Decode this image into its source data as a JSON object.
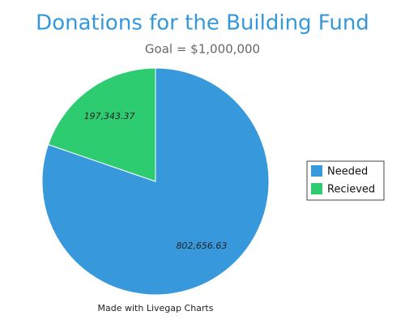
{
  "chart_data": {
    "type": "pie",
    "title": "Donations for the Building Fund",
    "subtitle": "Goal = $1,000,000",
    "categories": [
      "Needed",
      "Recieved"
    ],
    "values": [
      802656.63,
      197343.37
    ],
    "value_labels": [
      "802,656.63",
      "197,343.37"
    ],
    "colors": [
      "#3799dc",
      "#2ecc71"
    ],
    "legend": "right",
    "footer": "Made with Livegap Charts"
  }
}
